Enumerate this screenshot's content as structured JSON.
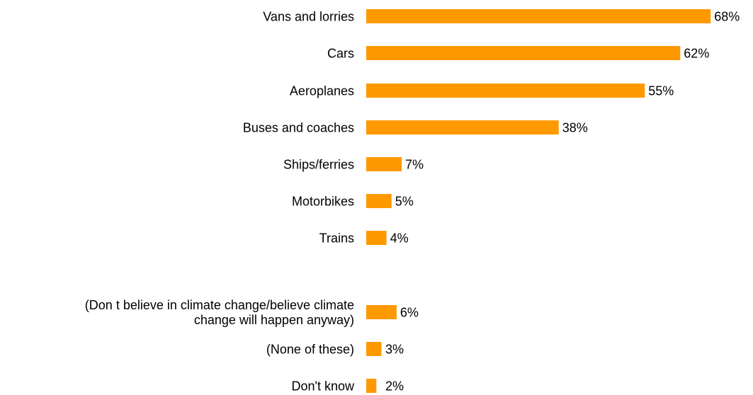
{
  "chart_data": {
    "type": "bar",
    "orientation": "horizontal",
    "title": "",
    "xlabel": "",
    "ylabel": "",
    "xlim": [
      0,
      68
    ],
    "grid": false,
    "legend": "none",
    "bar_color": "#ff9900",
    "categories": [
      [
        "Vans and lorries"
      ],
      [
        "Cars"
      ],
      [
        "Aeroplanes"
      ],
      [
        "Buses and coaches"
      ],
      [
        "Ships/ferries"
      ],
      [
        "Motorbikes"
      ],
      [
        "Trains"
      ],
      [
        "(Don t believe in climate change/believe climate",
        "change will happen anyway)"
      ],
      [
        "(None of these)"
      ],
      [
        "Don't know"
      ]
    ],
    "values": [
      68,
      62,
      55,
      38,
      7,
      5,
      4,
      6,
      3,
      2
    ],
    "value_labels": [
      "68%",
      "62%",
      "55%",
      "38%",
      "7%",
      "5%",
      "4%",
      "6%",
      "3%",
      "2%"
    ]
  }
}
